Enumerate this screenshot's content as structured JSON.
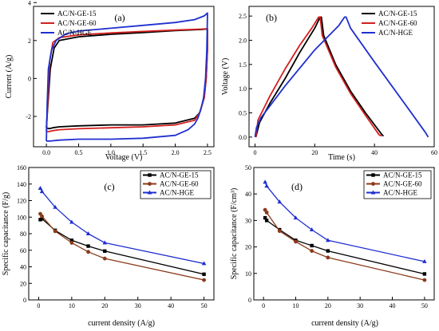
{
  "figure": {
    "panels": [
      {
        "id": "a",
        "panel_label": "(a)",
        "xlabel": "Voltage (V)",
        "ylabel": "Current (A/g)",
        "legend_position": "top-left"
      },
      {
        "id": "b",
        "panel_label": "(b)",
        "xlabel": "Time (s)",
        "ylabel": "Voltage (V)",
        "legend_position": "top-right"
      },
      {
        "id": "c",
        "panel_label": "(c)",
        "xlabel": "current density (A/g)",
        "ylabel": "Specific capacitance (F/g)",
        "legend_position": "top-right"
      },
      {
        "id": "d",
        "panel_label": "(d)",
        "xlabel": "current density (A/g)",
        "ylabel": "Specific capacitance (F/cm³)",
        "legend_position": "top-right"
      }
    ]
  },
  "chart_data": [
    {
      "type": "line",
      "panel": "a",
      "xlabel": "Voltage (V)",
      "ylabel": "Current (A/g)",
      "xlim": [
        -0.2,
        2.6
      ],
      "ylim": [
        -3.6,
        3.8
      ],
      "xticks": [
        "0.0",
        "0.5",
        "1.0",
        "1.5",
        "2.0",
        "2.5"
      ],
      "yticks": [
        "-2",
        "0",
        "2",
        "4"
      ],
      "xtick_values": [
        0,
        0.5,
        1.0,
        1.5,
        2.0,
        2.5
      ],
      "ytick_values": [
        -2,
        0,
        2,
        4
      ],
      "legend_position": "top-left",
      "series": [
        {
          "name": "AC/N-GE-15",
          "color": "#000000",
          "x": [
            0.0,
            0.02,
            0.06,
            0.12,
            0.2,
            0.5,
            1.0,
            1.5,
            2.0,
            2.4,
            2.47,
            2.5,
            2.5,
            2.48,
            2.45,
            2.38,
            2.3,
            2.0,
            1.5,
            1.0,
            0.5,
            0.2,
            0.1,
            0.04,
            0.0
          ],
          "y": [
            -2.6,
            -1.5,
            0.5,
            1.6,
            2.0,
            2.2,
            2.33,
            2.42,
            2.52,
            2.58,
            2.6,
            2.6,
            1.5,
            0.0,
            -1.0,
            -1.8,
            -2.1,
            -2.35,
            -2.45,
            -2.45,
            -2.5,
            -2.55,
            -2.6,
            -2.65,
            -2.6
          ]
        },
        {
          "name": "AC/N-GE-60",
          "color": "#d42020",
          "x": [
            0.0,
            0.02,
            0.05,
            0.1,
            0.2,
            0.5,
            1.0,
            1.5,
            2.0,
            2.4,
            2.47,
            2.5,
            2.5,
            2.48,
            2.45,
            2.38,
            2.3,
            2.0,
            1.5,
            1.0,
            0.5,
            0.2,
            0.1,
            0.04,
            0.0
          ],
          "y": [
            -2.8,
            -1.2,
            0.9,
            1.9,
            2.15,
            2.3,
            2.4,
            2.48,
            2.55,
            2.6,
            2.62,
            2.62,
            1.5,
            0.0,
            -1.0,
            -1.8,
            -2.2,
            -2.45,
            -2.55,
            -2.6,
            -2.65,
            -2.7,
            -2.75,
            -2.8,
            -2.8
          ]
        },
        {
          "name": "AC/N-HGE",
          "color": "#1f2fd0",
          "x": [
            0.0,
            0.01,
            0.03,
            0.08,
            0.15,
            0.3,
            0.5,
            1.0,
            1.5,
            2.0,
            2.3,
            2.45,
            2.5,
            2.5,
            2.49,
            2.47,
            2.44,
            2.4,
            2.35,
            2.3,
            2.2,
            2.0,
            1.5,
            1.0,
            0.5,
            0.2,
            0.05,
            0.0
          ],
          "y": [
            -3.3,
            -1.5,
            0.5,
            1.5,
            2.0,
            2.35,
            2.5,
            2.65,
            2.8,
            2.95,
            3.1,
            3.3,
            3.45,
            3.3,
            1.5,
            0.0,
            -1.0,
            -1.6,
            -2.1,
            -2.4,
            -2.7,
            -3.0,
            -3.15,
            -3.2,
            -3.2,
            -3.25,
            -3.3,
            -3.3
          ]
        }
      ]
    },
    {
      "type": "line",
      "panel": "b",
      "xlabel": "Time (s)",
      "ylabel": "Voltage (V)",
      "xlim": [
        -2,
        60
      ],
      "ylim": [
        -0.2,
        2.7
      ],
      "xticks": [
        "0",
        "20",
        "40",
        "60"
      ],
      "yticks": [
        "0.0",
        "0.5",
        "1.0",
        "1.5",
        "2.0",
        "2.5"
      ],
      "xtick_values": [
        0,
        20,
        40,
        60
      ],
      "ytick_values": [
        0,
        0.5,
        1.0,
        1.5,
        2.0,
        2.5
      ],
      "legend_position": "top-right",
      "series": [
        {
          "name": "AC/N-GE-15",
          "color": "#000000",
          "x": [
            0.3,
            1.5,
            5,
            10,
            15,
            20,
            21.8,
            22.2,
            23,
            27,
            32,
            37,
            42.5,
            43
          ],
          "y": [
            0.0,
            0.3,
            0.7,
            1.2,
            1.75,
            2.25,
            2.48,
            2.48,
            2.1,
            1.5,
            0.95,
            0.5,
            0.05,
            0.02
          ]
        },
        {
          "name": "AC/N-GE-60",
          "color": "#d42020",
          "x": [
            0.3,
            1,
            5,
            10,
            15,
            19,
            21.3,
            21.8,
            22.5,
            27,
            32,
            37,
            41.5,
            42.3
          ],
          "y": [
            0.0,
            0.35,
            0.85,
            1.4,
            1.9,
            2.25,
            2.48,
            2.48,
            2.1,
            1.45,
            0.9,
            0.45,
            0.05,
            0.02
          ]
        },
        {
          "name": "AC/N-HGE",
          "color": "#1f2fd0",
          "x": [
            0,
            0.5,
            2,
            10,
            20,
            28,
            30,
            30.5,
            32,
            40,
            50,
            57,
            58
          ],
          "y": [
            0.0,
            0.2,
            0.4,
            1.05,
            1.8,
            2.3,
            2.48,
            2.48,
            2.25,
            1.55,
            0.7,
            0.1,
            0.0
          ]
        }
      ]
    },
    {
      "type": "line",
      "panel": "c",
      "xlabel": "current density (A/g)",
      "ylabel": "Specific capacitance (F/g)",
      "xlim": [
        -3,
        53
      ],
      "ylim": [
        0,
        160
      ],
      "xticks": [
        "0",
        "10",
        "20",
        "30",
        "40",
        "50"
      ],
      "yticks": [
        "0",
        "20",
        "40",
        "60",
        "80",
        "100",
        "120",
        "140",
        "160"
      ],
      "xtick_values": [
        0,
        10,
        20,
        30,
        40,
        50
      ],
      "ytick_values": [
        0,
        20,
        40,
        60,
        80,
        100,
        120,
        140,
        160
      ],
      "legend_position": "top-right",
      "series": [
        {
          "name": "AC/N-GE-15",
          "color": "#000000",
          "marker": "square",
          "x": [
            0.5,
            1,
            5,
            10,
            15,
            20,
            50
          ],
          "y": [
            97,
            98,
            84,
            72,
            65,
            59,
            31
          ]
        },
        {
          "name": "AC/N-GE-60",
          "color": "#8b3a1a",
          "marker": "circle",
          "x": [
            0.5,
            1,
            5,
            10,
            15,
            20,
            50
          ],
          "y": [
            104,
            101,
            83,
            69,
            58,
            50,
            24
          ]
        },
        {
          "name": "AC/N-HGE",
          "color": "#1f2fd0",
          "marker": "triangle",
          "x": [
            0.5,
            1,
            5,
            10,
            15,
            20,
            50
          ],
          "y": [
            135,
            131,
            112,
            94,
            80,
            69,
            44
          ]
        }
      ]
    },
    {
      "type": "line",
      "panel": "d",
      "xlabel": "current density (A/g)",
      "ylabel": "Specific capacitance (F/cm³)",
      "xlim": [
        -3,
        53
      ],
      "ylim": [
        0,
        50
      ],
      "xticks": [
        "0",
        "10",
        "20",
        "30",
        "40",
        "50"
      ],
      "yticks": [
        "0",
        "10",
        "20",
        "30",
        "40",
        "50"
      ],
      "xtick_values": [
        0,
        10,
        20,
        30,
        40,
        50
      ],
      "ytick_values": [
        0,
        10,
        20,
        30,
        40,
        50
      ],
      "legend_position": "top-right",
      "series": [
        {
          "name": "AC/N-GE-15",
          "color": "#000000",
          "marker": "square",
          "x": [
            0.5,
            1,
            5,
            10,
            15,
            20,
            50
          ],
          "y": [
            31,
            30,
            26.5,
            22.5,
            20.5,
            18.5,
            9.8
          ]
        },
        {
          "name": "AC/N-GE-60",
          "color": "#8b3a1a",
          "marker": "circle",
          "x": [
            0.5,
            1,
            5,
            10,
            15,
            20,
            50
          ],
          "y": [
            34,
            33,
            26,
            22,
            18.5,
            16,
            7.5
          ]
        },
        {
          "name": "AC/N-HGE",
          "color": "#1f2fd0",
          "marker": "triangle",
          "x": [
            0.5,
            1,
            5,
            10,
            15,
            20,
            50
          ],
          "y": [
            44.5,
            43,
            37,
            31,
            26.5,
            22.5,
            14.5
          ]
        }
      ]
    }
  ]
}
